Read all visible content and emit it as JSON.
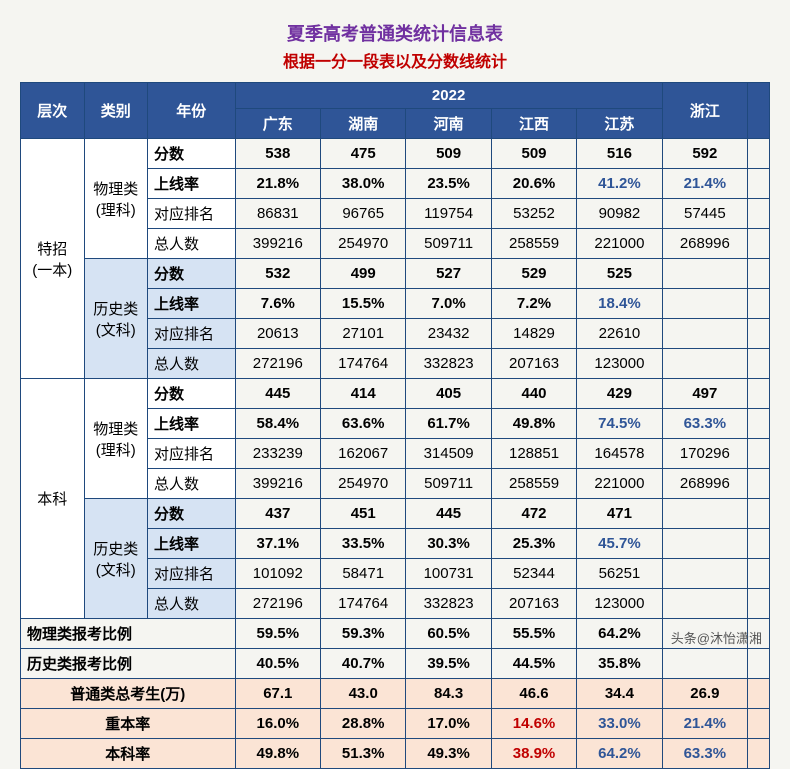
{
  "title": {
    "text": "夏季高考普通类统计信息表",
    "color": "#7030a0",
    "fontsize": 18
  },
  "subtitle": {
    "text": "根据一分一段表以及分数线统计",
    "color": "#c00000",
    "fontsize": 16
  },
  "watermark": "头条@沐怡潇湘",
  "header": {
    "bg": "#2f5597",
    "year": "2022",
    "cols": [
      "层次",
      "类别",
      "年份",
      "广东",
      "湖南",
      "河南",
      "江西",
      "江苏",
      "浙江",
      ""
    ],
    "widths": [
      58,
      58,
      80,
      78,
      78,
      78,
      78,
      78,
      78,
      20
    ]
  },
  "metrics": [
    "分数",
    "上线率",
    "对应排名",
    "总人数"
  ],
  "highlight_color": "#2f5597",
  "red_color": "#c00000",
  "shade1": "#d6e3f3",
  "shade2": "#fbe4d5",
  "sections": [
    {
      "level": "特招\n(一本)",
      "groups": [
        {
          "cat": "物理类\n(理科)",
          "shade": "#ffffff",
          "rows": [
            {
              "label": "分数",
              "bold": true,
              "vals": [
                "538",
                "475",
                "509",
                "509",
                "516",
                "592",
                ""
              ]
            },
            {
              "label": "上线率",
              "bold": true,
              "vals": [
                "21.8%",
                "38.0%",
                "23.5%",
                "20.6%",
                {
                  "v": "41.2%",
                  "c": "hi"
                },
                {
                  "v": "21.4%",
                  "c": "hi"
                },
                ""
              ]
            },
            {
              "label": "对应排名",
              "vals": [
                "86831",
                "96765",
                "119754",
                "53252",
                "90982",
                "57445",
                ""
              ]
            },
            {
              "label": "总人数",
              "vals": [
                "399216",
                "254970",
                "509711",
                "258559",
                "221000",
                "268996",
                ""
              ]
            }
          ]
        },
        {
          "cat": "历史类\n(文科)",
          "shade": "#d6e3f3",
          "rows": [
            {
              "label": "分数",
              "bold": true,
              "vals": [
                "532",
                "499",
                "527",
                "529",
                "525",
                "",
                ""
              ]
            },
            {
              "label": "上线率",
              "bold": true,
              "vals": [
                "7.6%",
                "15.5%",
                "7.0%",
                "7.2%",
                {
                  "v": "18.4%",
                  "c": "hi"
                },
                "",
                ""
              ]
            },
            {
              "label": "对应排名",
              "vals": [
                "20613",
                "27101",
                "23432",
                "14829",
                "22610",
                "",
                ""
              ]
            },
            {
              "label": "总人数",
              "vals": [
                "272196",
                "174764",
                "332823",
                "207163",
                "123000",
                "",
                ""
              ]
            }
          ]
        }
      ]
    },
    {
      "level": "本科",
      "groups": [
        {
          "cat": "物理类\n(理科)",
          "shade": "#ffffff",
          "rows": [
            {
              "label": "分数",
              "bold": true,
              "vals": [
                "445",
                "414",
                "405",
                "440",
                "429",
                "497",
                ""
              ]
            },
            {
              "label": "上线率",
              "bold": true,
              "vals": [
                "58.4%",
                "63.6%",
                "61.7%",
                "49.8%",
                {
                  "v": "74.5%",
                  "c": "hi"
                },
                {
                  "v": "63.3%",
                  "c": "hi"
                },
                ""
              ]
            },
            {
              "label": "对应排名",
              "vals": [
                "233239",
                "162067",
                "314509",
                "128851",
                "164578",
                "170296",
                ""
              ]
            },
            {
              "label": "总人数",
              "vals": [
                "399216",
                "254970",
                "509711",
                "258559",
                "221000",
                "268996",
                ""
              ]
            }
          ]
        },
        {
          "cat": "历史类\n(文科)",
          "shade": "#d6e3f3",
          "rows": [
            {
              "label": "分数",
              "bold": true,
              "vals": [
                "437",
                "451",
                "445",
                "472",
                "471",
                "",
                ""
              ]
            },
            {
              "label": "上线率",
              "bold": true,
              "vals": [
                "37.1%",
                "33.5%",
                "30.3%",
                "25.3%",
                {
                  "v": "45.7%",
                  "c": "hi"
                },
                "",
                ""
              ]
            },
            {
              "label": "对应排名",
              "vals": [
                "101092",
                "58471",
                "100731",
                "52344",
                "56251",
                "",
                ""
              ]
            },
            {
              "label": "总人数",
              "vals": [
                "272196",
                "174764",
                "332823",
                "207163",
                "123000",
                "",
                ""
              ]
            }
          ]
        }
      ]
    }
  ],
  "summary_plain": [
    {
      "label": "物理类报考比例",
      "vals": [
        "59.5%",
        "59.3%",
        "60.5%",
        "55.5%",
        "64.2%",
        "",
        ""
      ]
    },
    {
      "label": "历史类报考比例",
      "vals": [
        "40.5%",
        "40.7%",
        "39.5%",
        "44.5%",
        "35.8%",
        "",
        ""
      ]
    }
  ],
  "summary_shaded": [
    {
      "label": "普通类总考生(万)",
      "vals": [
        "67.1",
        "43.0",
        "84.3",
        "46.6",
        "34.4",
        "26.9",
        ""
      ]
    },
    {
      "label": "重本率",
      "vals": [
        "16.0%",
        "28.8%",
        "17.0%",
        {
          "v": "14.6%",
          "c": "red"
        },
        {
          "v": "33.0%",
          "c": "hi"
        },
        {
          "v": "21.4%",
          "c": "hi"
        },
        ""
      ]
    },
    {
      "label": "本科率",
      "vals": [
        "49.8%",
        "51.3%",
        "49.3%",
        {
          "v": "38.9%",
          "c": "red"
        },
        {
          "v": "64.2%",
          "c": "hi"
        },
        {
          "v": "63.3%",
          "c": "hi"
        },
        ""
      ]
    }
  ]
}
